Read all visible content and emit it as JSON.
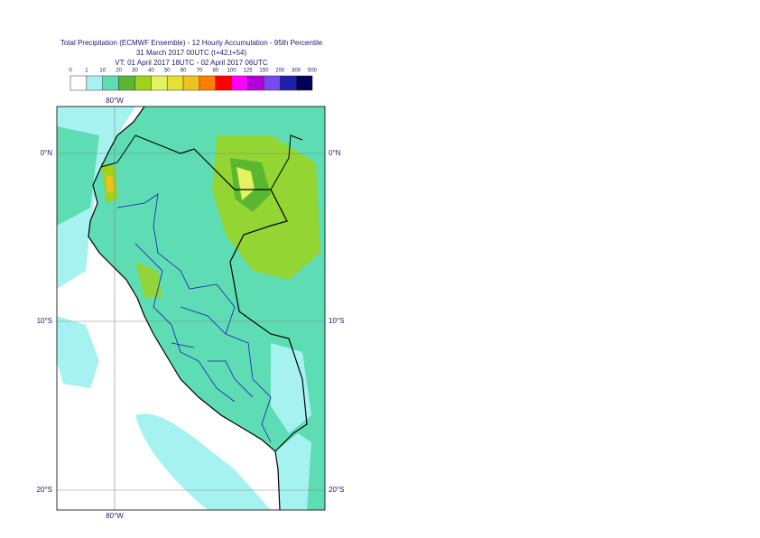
{
  "header": {
    "title": "Total Precipitation (ECMWF Ensemble) - 12 Hourly Accumulation - 95th Percentile",
    "subtitle": "31 March 2017 00UTC (t+42,t+54)",
    "valid_time": "VT: 01 April 2017 18UTC - 02 April 2017 06UTC"
  },
  "legend": {
    "labels": [
      0,
      1,
      10,
      20,
      30,
      40,
      50,
      60,
      70,
      80,
      100,
      125,
      150,
      200,
      300,
      500
    ],
    "colors": [
      "#ffffff",
      "#a6f2f0",
      "#5edcb4",
      "#5ab830",
      "#9cd41c",
      "#e4f260",
      "#e8e030",
      "#f0c020",
      "#ff8000",
      "#ff0000",
      "#ff00ff",
      "#b400d8",
      "#7848f0",
      "#2020b0",
      "#000058"
    ]
  },
  "map": {
    "lon_labels": [
      "80°W"
    ],
    "lat_labels": [
      "0°N",
      "10°S",
      "20°S"
    ]
  }
}
